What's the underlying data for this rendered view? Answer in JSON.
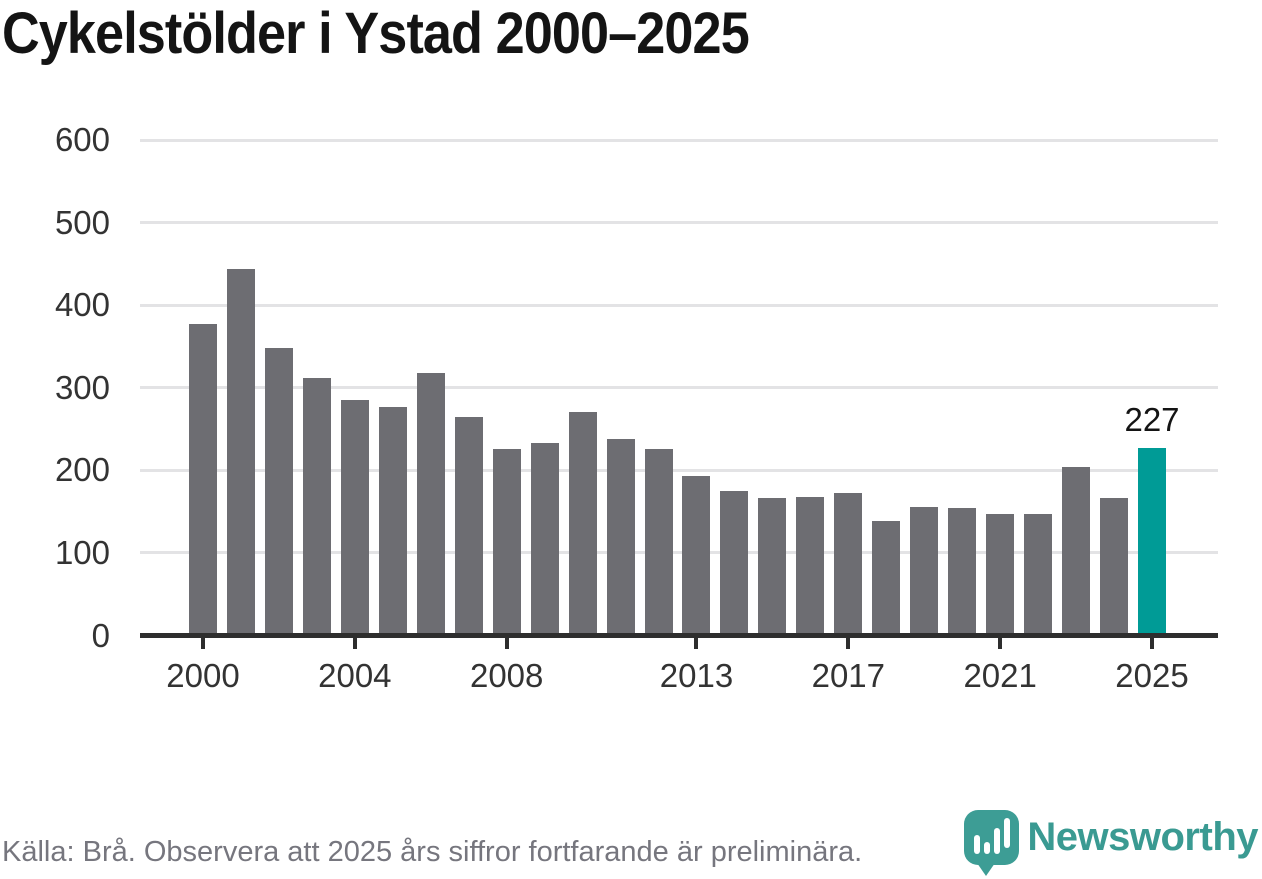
{
  "chart_data": {
    "type": "bar",
    "title": "Cykelstölder i Ystad 2000–2025",
    "categories": [
      2000,
      2001,
      2002,
      2003,
      2004,
      2005,
      2006,
      2007,
      2008,
      2009,
      2010,
      2011,
      2012,
      2013,
      2014,
      2015,
      2016,
      2017,
      2018,
      2019,
      2020,
      2021,
      2022,
      2023,
      2024,
      2025
    ],
    "values": [
      377,
      444,
      348,
      312,
      285,
      276,
      318,
      264,
      226,
      233,
      270,
      238,
      225,
      193,
      175,
      166,
      167,
      172,
      138,
      155,
      154,
      147,
      147,
      204,
      166,
      227
    ],
    "highlight_category": 2025,
    "highlight_value_label": "227",
    "ylim": [
      0,
      600
    ],
    "yticks": [
      0,
      100,
      200,
      300,
      400,
      500,
      600
    ],
    "xtick_years": [
      2000,
      2004,
      2008,
      2013,
      2017,
      2021,
      2025
    ],
    "grid": true,
    "legend": "none",
    "bar_color": "#6d6d72",
    "highlight_color": "#009b96",
    "gridline_color": "#e3e3e5",
    "axis_color": "#2e2e2e"
  },
  "footer": {
    "source_note": "Källa: Brå. Observera att 2025 års siffror fortfarande är preliminära."
  },
  "logo": {
    "wordmark": "Newsworthy",
    "wordmark_color": "#3a9a92",
    "icon": "newsworthy-speech-bubble-bar-chart-icon",
    "icon_color": "#3d9d95"
  }
}
